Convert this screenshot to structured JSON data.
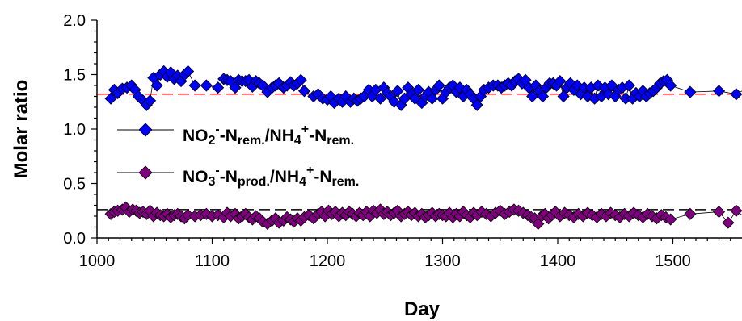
{
  "chart_data": {
    "type": "scatter",
    "title": "",
    "xlabel": "Day",
    "ylabel": "Molar ratio",
    "xlim": [
      1000,
      1560
    ],
    "ylim": [
      0.0,
      2.0
    ],
    "x_ticks": [
      "1000",
      "1100",
      "1200",
      "1300",
      "1400",
      "1500"
    ],
    "y_ticks": [
      "0.0",
      "0.5",
      "1.0",
      "1.5",
      "2.0"
    ],
    "grid": false,
    "legend_position": "middle-left",
    "colors": {
      "series1": "#0000ff",
      "series2": "#800080",
      "reference_line1": "#ff0000",
      "reference_line2": "#000000"
    },
    "reference_lines": [
      {
        "y": 1.32,
        "color": "#ff0000",
        "style": "dashed"
      },
      {
        "y": 0.26,
        "color": "#000000",
        "style": "dashed"
      }
    ],
    "series": [
      {
        "legend": {
          "p1": "NO",
          "s1": "2",
          "p2": "-",
          "s2": "-N",
          "s3": "rem.",
          "p3": "/NH",
          "s4": "4",
          "s5": "+",
          "p4": "-N",
          "s6": "rem."
        },
        "marker": "diamond",
        "color": "#0000ff",
        "points": [
          [
            1012,
            1.28
          ],
          [
            1015,
            1.36
          ],
          [
            1018,
            1.33
          ],
          [
            1022,
            1.37
          ],
          [
            1026,
            1.38
          ],
          [
            1030,
            1.4
          ],
          [
            1033,
            1.36
          ],
          [
            1036,
            1.3
          ],
          [
            1040,
            1.26
          ],
          [
            1043,
            1.22
          ],
          [
            1046,
            1.26
          ],
          [
            1049,
            1.47
          ],
          [
            1052,
            1.4
          ],
          [
            1055,
            1.5
          ],
          [
            1058,
            1.53
          ],
          [
            1061,
            1.48
          ],
          [
            1064,
            1.52
          ],
          [
            1067,
            1.46
          ],
          [
            1070,
            1.49
          ],
          [
            1073,
            1.44
          ],
          [
            1076,
            1.5
          ],
          [
            1079,
            1.53
          ],
          [
            1085,
            1.4
          ],
          [
            1095,
            1.4
          ],
          [
            1105,
            1.38
          ],
          [
            1110,
            1.46
          ],
          [
            1113,
            1.45
          ],
          [
            1116,
            1.44
          ],
          [
            1120,
            1.38
          ],
          [
            1123,
            1.45
          ],
          [
            1126,
            1.44
          ],
          [
            1129,
            1.44
          ],
          [
            1132,
            1.45
          ],
          [
            1135,
            1.39
          ],
          [
            1138,
            1.44
          ],
          [
            1141,
            1.42
          ],
          [
            1144,
            1.4
          ],
          [
            1148,
            1.34
          ],
          [
            1152,
            1.38
          ],
          [
            1155,
            1.4
          ],
          [
            1158,
            1.42
          ],
          [
            1162,
            1.38
          ],
          [
            1165,
            1.4
          ],
          [
            1168,
            1.43
          ],
          [
            1171,
            1.4
          ],
          [
            1174,
            1.42
          ],
          [
            1177,
            1.45
          ],
          [
            1180,
            1.35
          ],
          [
            1188,
            1.3
          ],
          [
            1192,
            1.32
          ],
          [
            1196,
            1.28
          ],
          [
            1200,
            1.27
          ],
          [
            1203,
            1.3
          ],
          [
            1206,
            1.24
          ],
          [
            1210,
            1.28
          ],
          [
            1213,
            1.25
          ],
          [
            1216,
            1.3
          ],
          [
            1220,
            1.25
          ],
          [
            1223,
            1.28
          ],
          [
            1226,
            1.26
          ],
          [
            1229,
            1.28
          ],
          [
            1232,
            1.3
          ],
          [
            1236,
            1.36
          ],
          [
            1239,
            1.3
          ],
          [
            1242,
            1.36
          ],
          [
            1246,
            1.28
          ],
          [
            1249,
            1.38
          ],
          [
            1252,
            1.33
          ],
          [
            1255,
            1.3
          ],
          [
            1258,
            1.25
          ],
          [
            1261,
            1.35
          ],
          [
            1264,
            1.22
          ],
          [
            1267,
            1.28
          ],
          [
            1270,
            1.38
          ],
          [
            1273,
            1.32
          ],
          [
            1276,
            1.28
          ],
          [
            1279,
            1.36
          ],
          [
            1282,
            1.24
          ],
          [
            1285,
            1.3
          ],
          [
            1288,
            1.34
          ],
          [
            1291,
            1.28
          ],
          [
            1294,
            1.36
          ],
          [
            1297,
            1.4
          ],
          [
            1300,
            1.28
          ],
          [
            1303,
            1.34
          ],
          [
            1306,
            1.38
          ],
          [
            1309,
            1.4
          ],
          [
            1312,
            1.34
          ],
          [
            1315,
            1.38
          ],
          [
            1318,
            1.3
          ],
          [
            1321,
            1.36
          ],
          [
            1324,
            1.32
          ],
          [
            1327,
            1.28
          ],
          [
            1330,
            1.22
          ],
          [
            1333,
            1.3
          ],
          [
            1336,
            1.36
          ],
          [
            1340,
            1.38
          ],
          [
            1344,
            1.4
          ],
          [
            1348,
            1.4
          ],
          [
            1351,
            1.38
          ],
          [
            1354,
            1.4
          ],
          [
            1357,
            1.42
          ],
          [
            1360,
            1.4
          ],
          [
            1363,
            1.44
          ],
          [
            1366,
            1.46
          ],
          [
            1369,
            1.42
          ],
          [
            1372,
            1.45
          ],
          [
            1375,
            1.38
          ],
          [
            1378,
            1.3
          ],
          [
            1381,
            1.4
          ],
          [
            1384,
            1.35
          ],
          [
            1387,
            1.3
          ],
          [
            1390,
            1.38
          ],
          [
            1393,
            1.42
          ],
          [
            1396,
            1.42
          ],
          [
            1399,
            1.4
          ],
          [
            1402,
            1.44
          ],
          [
            1405,
            1.3
          ],
          [
            1408,
            1.38
          ],
          [
            1411,
            1.42
          ],
          [
            1414,
            1.36
          ],
          [
            1417,
            1.4
          ],
          [
            1420,
            1.32
          ],
          [
            1423,
            1.38
          ],
          [
            1426,
            1.3
          ],
          [
            1429,
            1.38
          ],
          [
            1432,
            1.28
          ],
          [
            1435,
            1.4
          ],
          [
            1438,
            1.3
          ],
          [
            1441,
            1.38
          ],
          [
            1444,
            1.32
          ],
          [
            1447,
            1.4
          ],
          [
            1450,
            1.3
          ],
          [
            1453,
            1.36
          ],
          [
            1456,
            1.38
          ],
          [
            1459,
            1.28
          ],
          [
            1462,
            1.4
          ],
          [
            1465,
            1.28
          ],
          [
            1468,
            1.33
          ],
          [
            1471,
            1.3
          ],
          [
            1474,
            1.35
          ],
          [
            1477,
            1.3
          ],
          [
            1480,
            1.33
          ],
          [
            1483,
            1.35
          ],
          [
            1486,
            1.38
          ],
          [
            1489,
            1.42
          ],
          [
            1492,
            1.44
          ],
          [
            1495,
            1.45
          ],
          [
            1498,
            1.4
          ],
          [
            1515,
            1.34
          ],
          [
            1540,
            1.35
          ],
          [
            1555,
            1.32
          ],
          [
            1560,
            1.35
          ]
        ]
      },
      {
        "legend": {
          "p1": "NO",
          "s1": "3",
          "p2": "-",
          "s2": "-N",
          "s3": "prod.",
          "p3": "/NH",
          "s4": "4",
          "s5": "+",
          "p4": "-N",
          "s6": "rem."
        },
        "marker": "diamond",
        "color": "#800080",
        "points": [
          [
            1012,
            0.22
          ],
          [
            1015,
            0.24
          ],
          [
            1018,
            0.25
          ],
          [
            1022,
            0.26
          ],
          [
            1025,
            0.28
          ],
          [
            1028,
            0.24
          ],
          [
            1031,
            0.26
          ],
          [
            1034,
            0.25
          ],
          [
            1037,
            0.23
          ],
          [
            1040,
            0.24
          ],
          [
            1043,
            0.22
          ],
          [
            1046,
            0.25
          ],
          [
            1049,
            0.2
          ],
          [
            1052,
            0.23
          ],
          [
            1055,
            0.21
          ],
          [
            1058,
            0.2
          ],
          [
            1061,
            0.22
          ],
          [
            1064,
            0.19
          ],
          [
            1067,
            0.21
          ],
          [
            1070,
            0.22
          ],
          [
            1073,
            0.2
          ],
          [
            1076,
            0.18
          ],
          [
            1079,
            0.21
          ],
          [
            1085,
            0.2
          ],
          [
            1090,
            0.21
          ],
          [
            1095,
            0.22
          ],
          [
            1100,
            0.2
          ],
          [
            1105,
            0.21
          ],
          [
            1110,
            0.19
          ],
          [
            1113,
            0.23
          ],
          [
            1116,
            0.2
          ],
          [
            1120,
            0.22
          ],
          [
            1123,
            0.18
          ],
          [
            1126,
            0.2
          ],
          [
            1129,
            0.22
          ],
          [
            1132,
            0.19
          ],
          [
            1135,
            0.17
          ],
          [
            1138,
            0.2
          ],
          [
            1141,
            0.18
          ],
          [
            1144,
            0.15
          ],
          [
            1148,
            0.13
          ],
          [
            1152,
            0.16
          ],
          [
            1155,
            0.18
          ],
          [
            1158,
            0.14
          ],
          [
            1162,
            0.16
          ],
          [
            1165,
            0.19
          ],
          [
            1168,
            0.17
          ],
          [
            1171,
            0.15
          ],
          [
            1174,
            0.18
          ],
          [
            1177,
            0.16
          ],
          [
            1180,
            0.19
          ],
          [
            1184,
            0.21
          ],
          [
            1188,
            0.18
          ],
          [
            1192,
            0.22
          ],
          [
            1195,
            0.24
          ],
          [
            1198,
            0.2
          ],
          [
            1201,
            0.25
          ],
          [
            1204,
            0.22
          ],
          [
            1207,
            0.24
          ],
          [
            1210,
            0.2
          ],
          [
            1213,
            0.23
          ],
          [
            1216,
            0.21
          ],
          [
            1219,
            0.24
          ],
          [
            1222,
            0.22
          ],
          [
            1225,
            0.2
          ],
          [
            1228,
            0.23
          ],
          [
            1231,
            0.21
          ],
          [
            1234,
            0.24
          ],
          [
            1237,
            0.2
          ],
          [
            1240,
            0.25
          ],
          [
            1243,
            0.23
          ],
          [
            1246,
            0.26
          ],
          [
            1249,
            0.22
          ],
          [
            1252,
            0.24
          ],
          [
            1255,
            0.21
          ],
          [
            1258,
            0.23
          ],
          [
            1261,
            0.25
          ],
          [
            1264,
            0.2
          ],
          [
            1267,
            0.22
          ],
          [
            1270,
            0.24
          ],
          [
            1273,
            0.21
          ],
          [
            1276,
            0.23
          ],
          [
            1279,
            0.2
          ],
          [
            1282,
            0.22
          ],
          [
            1285,
            0.19
          ],
          [
            1288,
            0.21
          ],
          [
            1291,
            0.23
          ],
          [
            1294,
            0.2
          ],
          [
            1297,
            0.22
          ],
          [
            1300,
            0.21
          ],
          [
            1303,
            0.2
          ],
          [
            1306,
            0.23
          ],
          [
            1309,
            0.19
          ],
          [
            1312,
            0.22
          ],
          [
            1315,
            0.2
          ],
          [
            1318,
            0.24
          ],
          [
            1321,
            0.21
          ],
          [
            1324,
            0.19
          ],
          [
            1327,
            0.23
          ],
          [
            1330,
            0.21
          ],
          [
            1334,
            0.24
          ],
          [
            1338,
            0.22
          ],
          [
            1342,
            0.2
          ],
          [
            1346,
            0.23
          ],
          [
            1350,
            0.25
          ],
          [
            1354,
            0.22
          ],
          [
            1358,
            0.24
          ],
          [
            1362,
            0.26
          ],
          [
            1366,
            0.25
          ],
          [
            1370,
            0.23
          ],
          [
            1374,
            0.21
          ],
          [
            1377,
            0.19
          ],
          [
            1380,
            0.18
          ],
          [
            1383,
            0.13
          ],
          [
            1386,
            0.2
          ],
          [
            1389,
            0.22
          ],
          [
            1392,
            0.18
          ],
          [
            1395,
            0.21
          ],
          [
            1398,
            0.24
          ],
          [
            1402,
            0.2
          ],
          [
            1406,
            0.23
          ],
          [
            1410,
            0.21
          ],
          [
            1414,
            0.19
          ],
          [
            1418,
            0.22
          ],
          [
            1422,
            0.2
          ],
          [
            1426,
            0.23
          ],
          [
            1430,
            0.21
          ],
          [
            1434,
            0.19
          ],
          [
            1438,
            0.22
          ],
          [
            1442,
            0.2
          ],
          [
            1446,
            0.23
          ],
          [
            1450,
            0.21
          ],
          [
            1454,
            0.19
          ],
          [
            1458,
            0.22
          ],
          [
            1462,
            0.2
          ],
          [
            1466,
            0.23
          ],
          [
            1470,
            0.21
          ],
          [
            1474,
            0.19
          ],
          [
            1478,
            0.22
          ],
          [
            1482,
            0.2
          ],
          [
            1486,
            0.18
          ],
          [
            1490,
            0.21
          ],
          [
            1494,
            0.19
          ],
          [
            1498,
            0.17
          ],
          [
            1515,
            0.22
          ],
          [
            1540,
            0.24
          ],
          [
            1548,
            0.14
          ],
          [
            1555,
            0.25
          ],
          [
            1560,
            0.21
          ]
        ]
      }
    ]
  }
}
